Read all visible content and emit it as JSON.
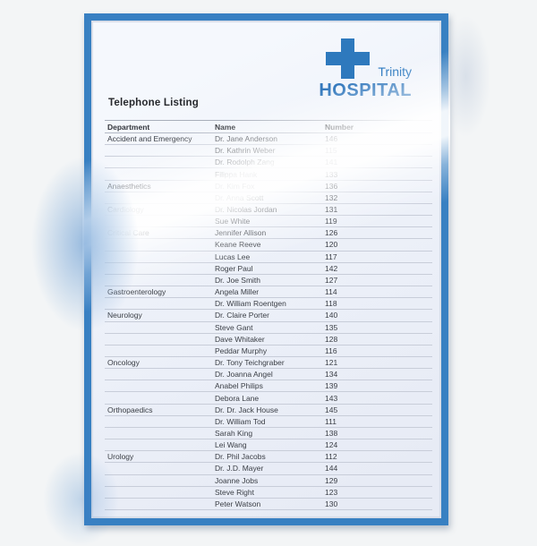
{
  "document": {
    "title": "Telephone Listing"
  },
  "logo": {
    "name": "Trinity",
    "type": "HOSPITAL",
    "cross_icon": "medical-cross",
    "accent_color": "#3880c2"
  },
  "table": {
    "columns": [
      "Department",
      "Name",
      "Number"
    ],
    "rows": [
      {
        "department": "Accident and Emergency",
        "name": "Dr. Jane Anderson",
        "number": "146"
      },
      {
        "department": "",
        "name": "Dr. Kathrin Weber",
        "number": "115"
      },
      {
        "department": "",
        "name": "Dr. Rodolph Zang",
        "number": "141"
      },
      {
        "department": "",
        "name": "Filippa Hank",
        "number": "133"
      },
      {
        "department": "Anaesthetics",
        "name": "Dr. Kim Fox",
        "number": "136"
      },
      {
        "department": "",
        "name": "Dr. Anna Scott",
        "number": "132"
      },
      {
        "department": "Cardiology",
        "name": "Dr. Nicolas Jordan",
        "number": "131"
      },
      {
        "department": "",
        "name": "Sue White",
        "number": "119"
      },
      {
        "department": "Critical Care",
        "name": "Jennifer Allison",
        "number": "126"
      },
      {
        "department": "",
        "name": "Keane Reeve",
        "number": "120"
      },
      {
        "department": "",
        "name": "Lucas Lee",
        "number": "117"
      },
      {
        "department": "",
        "name": "Roger Paul",
        "number": "142"
      },
      {
        "department": "",
        "name": "Dr. Joe Smith",
        "number": "127"
      },
      {
        "department": "Gastroenterology",
        "name": "Angela Miller",
        "number": "114"
      },
      {
        "department": "",
        "name": "Dr. William Roentgen",
        "number": "118"
      },
      {
        "department": "Neurology",
        "name": "Dr. Claire Porter",
        "number": "140"
      },
      {
        "department": "",
        "name": "Steve Gant",
        "number": "135"
      },
      {
        "department": "",
        "name": "Dave Whitaker",
        "number": "128"
      },
      {
        "department": "",
        "name": "Peddar Murphy",
        "number": "116"
      },
      {
        "department": "Oncology",
        "name": "Dr. Tony Teichgraber",
        "number": "121"
      },
      {
        "department": "",
        "name": "Dr. Joanna Angel",
        "number": "134"
      },
      {
        "department": "",
        "name": "Anabel Philips",
        "number": "139"
      },
      {
        "department": "",
        "name": "Debora Lane",
        "number": "143"
      },
      {
        "department": "Orthopaedics",
        "name": "Dr. Dr. Jack House",
        "number": "145"
      },
      {
        "department": "",
        "name": "Dr. William Tod",
        "number": "111"
      },
      {
        "department": "",
        "name": "Sarah King",
        "number": "138"
      },
      {
        "department": "",
        "name": "Lei Wang",
        "number": "124"
      },
      {
        "department": "Urology",
        "name": "Dr. Phil Jacobs",
        "number": "112"
      },
      {
        "department": "",
        "name": "Dr. J.D. Mayer",
        "number": "144"
      },
      {
        "department": "",
        "name": "Joanne Jobs",
        "number": "129"
      },
      {
        "department": "",
        "name": "Steve Right",
        "number": "123"
      },
      {
        "department": "",
        "name": "Peter Watson",
        "number": "130"
      }
    ]
  },
  "colors": {
    "accent_blue": "#3880c2",
    "logo_blue": "#2e79bd",
    "card_background": "#edf1f9",
    "page_background": "#f3f5f6",
    "row_line": "#c8cdd9",
    "text_dark": "#3a3e45"
  }
}
